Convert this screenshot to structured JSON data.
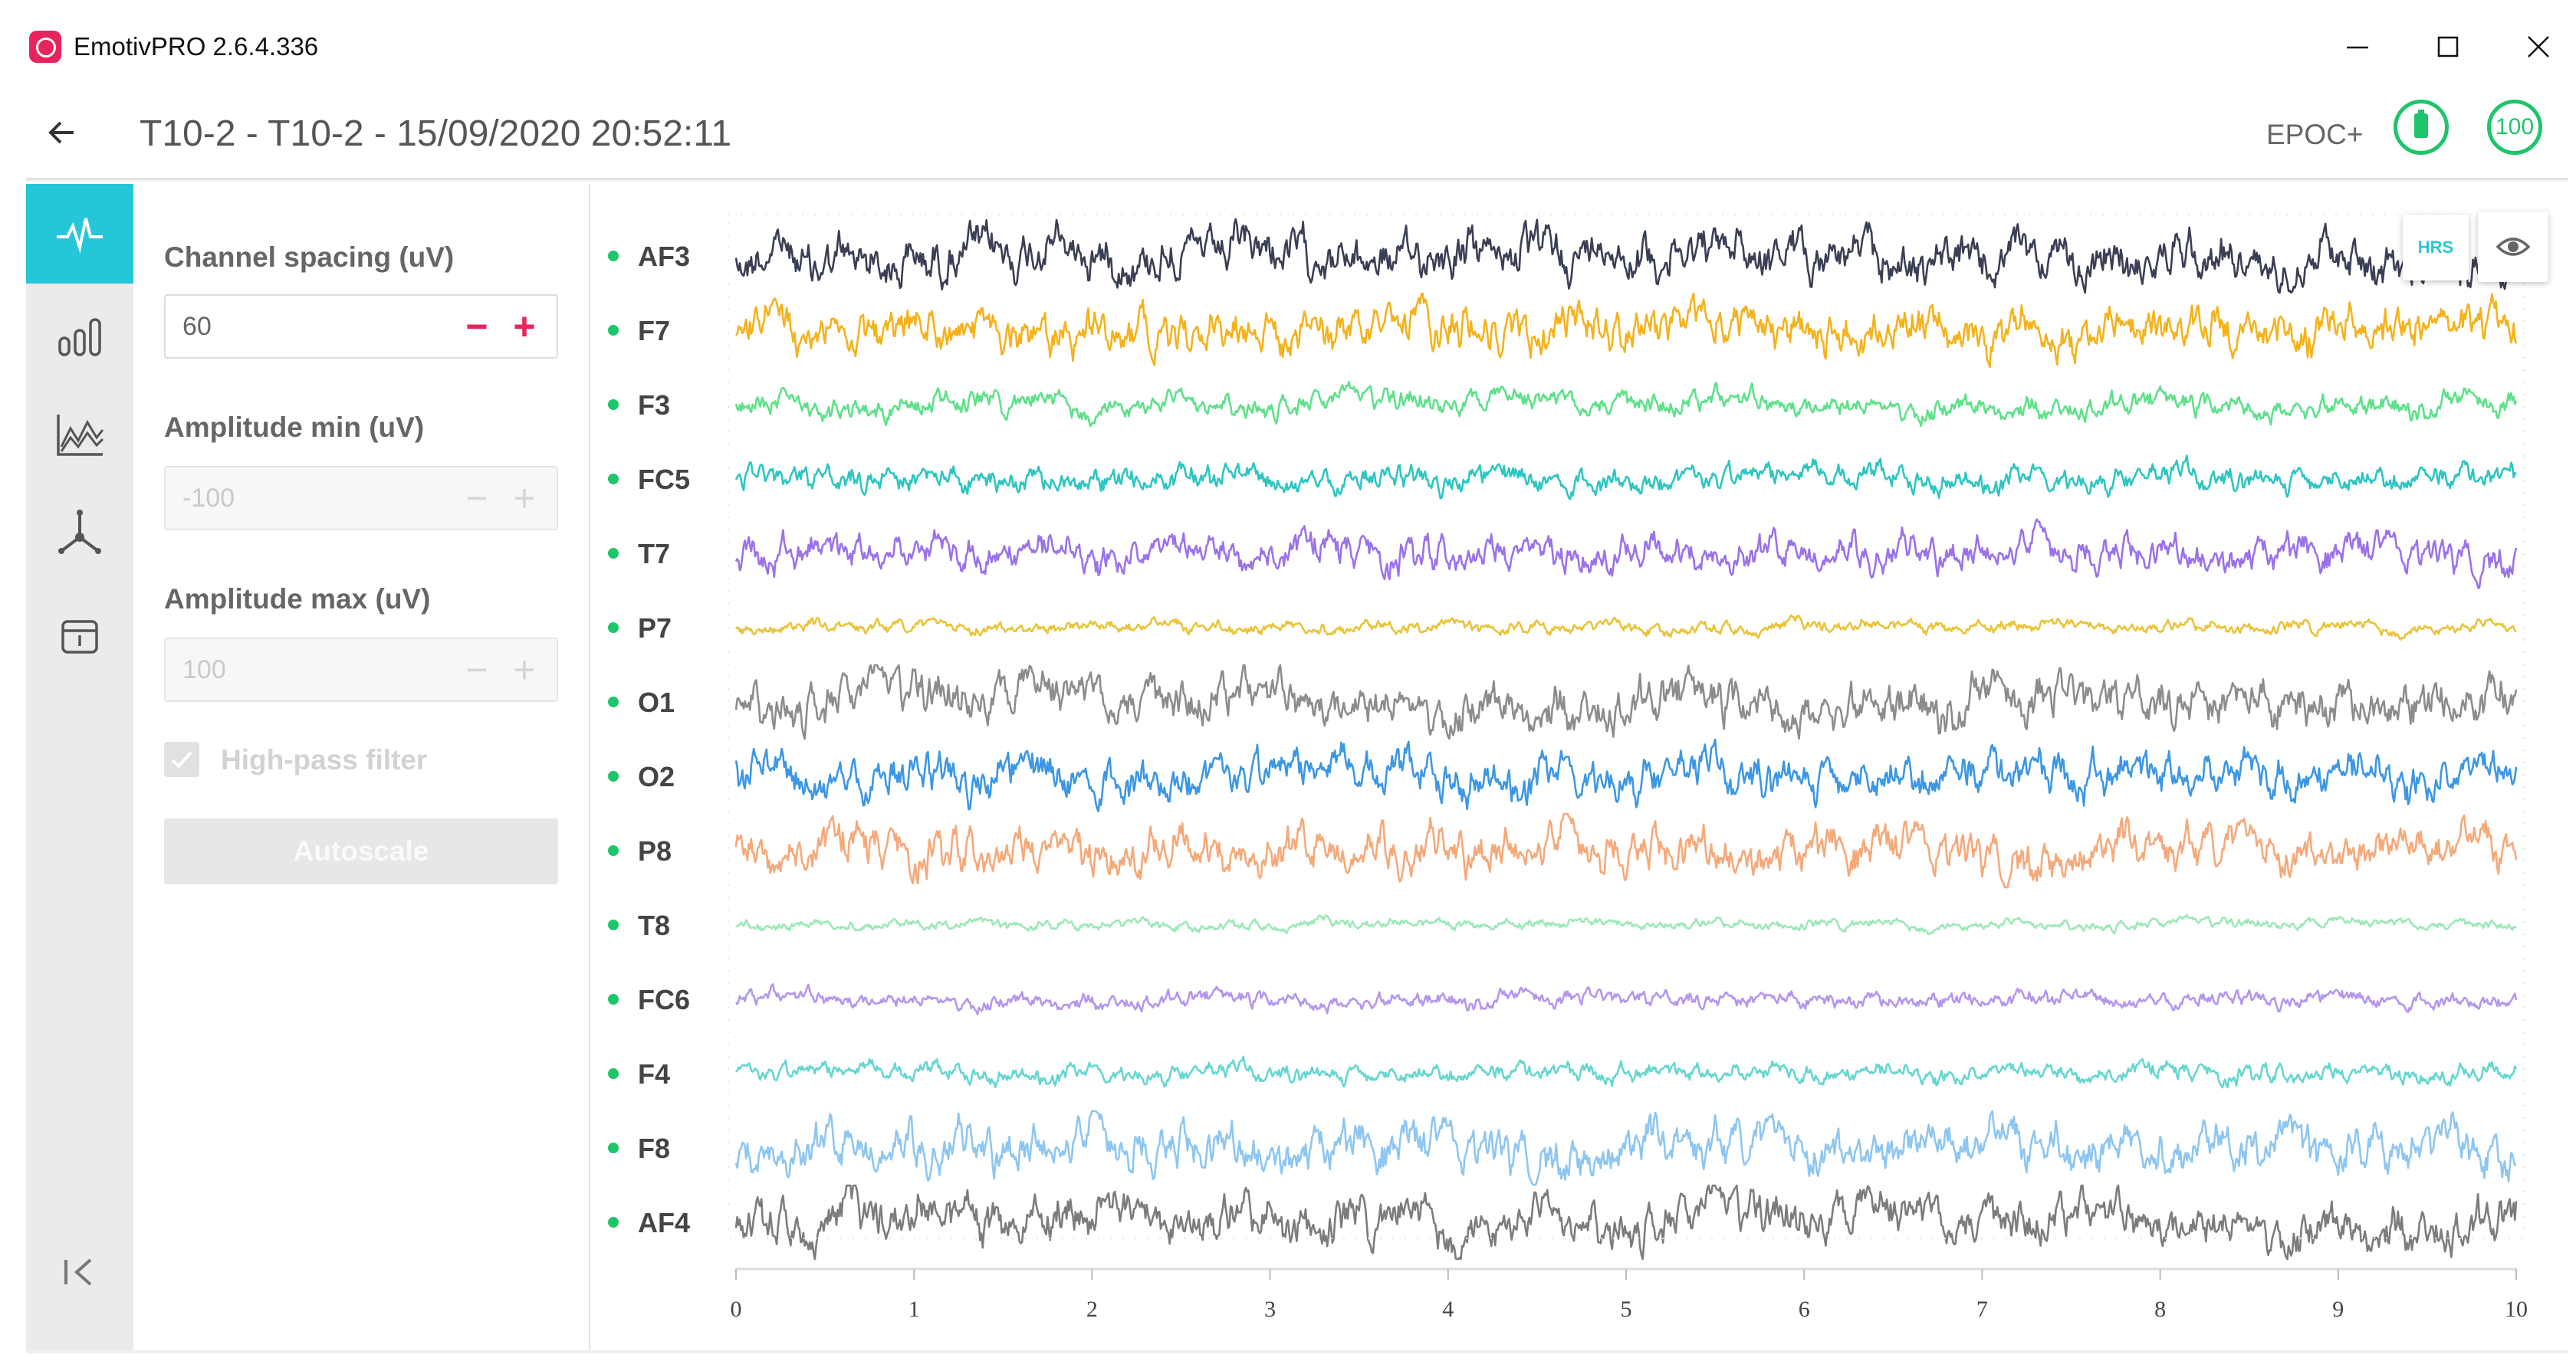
{
  "window": {
    "title": "EmotivPRO 2.6.4.336",
    "minimize_label": "Minimize",
    "maximize_label": "Maximize",
    "close_label": "Close"
  },
  "header": {
    "recording_title": "T10-2  - T10-2   - 15/09/2020 20:52:11",
    "device": "EPOC+",
    "battery_icon": "battery-icon",
    "contact_quality": "100",
    "accent_color": "#1ec56a"
  },
  "sidebar": {
    "items": [
      {
        "icon": "raw-eeg-icon",
        "active": true
      },
      {
        "icon": "bar-chart-icon",
        "active": false
      },
      {
        "icon": "performance-metrics-icon",
        "active": false
      },
      {
        "icon": "motion-sensor-icon",
        "active": false
      },
      {
        "icon": "markers-icon",
        "active": false
      }
    ],
    "collapse_icon": "collapse-icon",
    "active_color": "#26c6d9"
  },
  "settings": {
    "channel_spacing": {
      "label": "Channel spacing (uV)",
      "value": "60",
      "enabled": true
    },
    "amplitude_min": {
      "label": "Amplitude min (uV)",
      "value": "-100",
      "enabled": false
    },
    "amplitude_max": {
      "label": "Amplitude max (uV)",
      "value": "100",
      "enabled": false
    },
    "stepper_minus": "−",
    "stepper_plus": "+",
    "high_pass_filter": {
      "label": "High-pass filter",
      "checked": true,
      "enabled": false
    },
    "autoscale_label": "Autoscale",
    "stepper_color": "#e8245c"
  },
  "toolbar": {
    "hrs_label": "HRS",
    "eye_icon": "eye-icon"
  },
  "chart_data": {
    "type": "line",
    "title": "",
    "xlabel": "",
    "ylabel": "",
    "xlim": [
      0,
      10
    ],
    "x_ticks": [
      "0",
      "1",
      "2",
      "3",
      "4",
      "5",
      "6",
      "7",
      "8",
      "9",
      "10"
    ],
    "channel_marker_color": "#1ec56a",
    "series": [
      {
        "name": "AF3",
        "color": "#3a3f55",
        "amplitude": 1.0
      },
      {
        "name": "F7",
        "color": "#f5b21c",
        "amplitude": 0.95
      },
      {
        "name": "F3",
        "color": "#5fe08a",
        "amplitude": 0.5
      },
      {
        "name": "FC5",
        "color": "#2ec5c2",
        "amplitude": 0.55
      },
      {
        "name": "T7",
        "color": "#9b72ea",
        "amplitude": 0.75
      },
      {
        "name": "P7",
        "color": "#e9c43a",
        "amplitude": 0.28
      },
      {
        "name": "O1",
        "color": "#8c8c8c",
        "amplitude": 1.0
      },
      {
        "name": "O2",
        "color": "#3c97e4",
        "amplitude": 0.95
      },
      {
        "name": "P8",
        "color": "#f5a97a",
        "amplitude": 0.95
      },
      {
        "name": "T8",
        "color": "#9ce8b8",
        "amplitude": 0.22
      },
      {
        "name": "FC6",
        "color": "#b596ee",
        "amplitude": 0.35
      },
      {
        "name": "F4",
        "color": "#66d6d0",
        "amplitude": 0.4
      },
      {
        "name": "F8",
        "color": "#8ec6f2",
        "amplitude": 1.0
      },
      {
        "name": "AF4",
        "color": "#7c7c7c",
        "amplitude": 1.0
      }
    ]
  }
}
